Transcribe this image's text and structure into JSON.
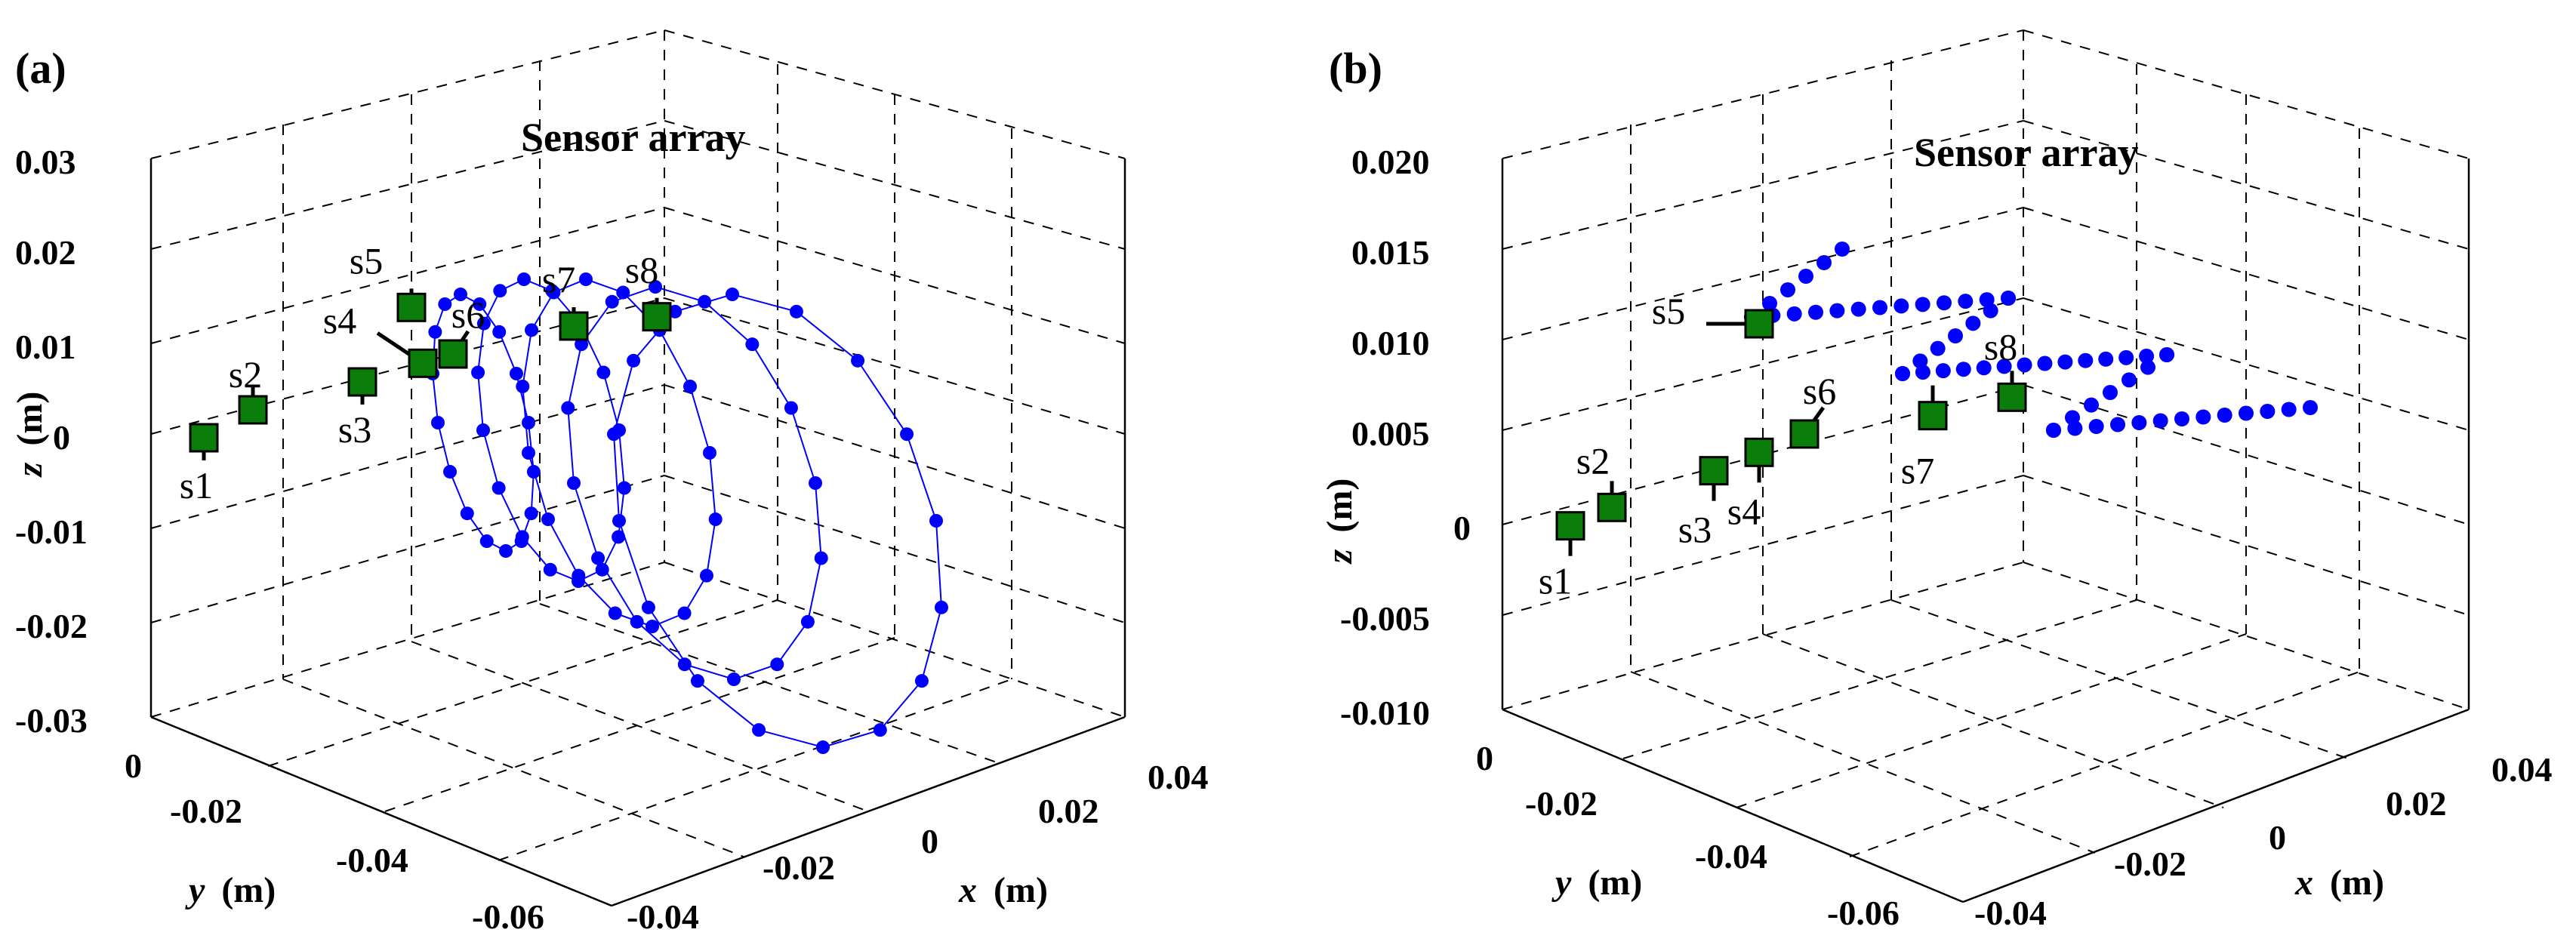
{
  "chart_data": [
    {
      "type": "scatter",
      "panel_label": "(a)",
      "title": "Sensor array",
      "xlabel": {
        "symbol": "x",
        "unit": "(m)"
      },
      "ylabel": {
        "symbol": "y",
        "unit": "(m)"
      },
      "zlabel": {
        "symbol": "z",
        "unit": "(m)"
      },
      "x_ticks": [
        "-0.04",
        "-0.02",
        "0",
        "0.02",
        "0.04"
      ],
      "y_ticks": [
        "0",
        "-0.02",
        "-0.04",
        "-0.06"
      ],
      "z_ticks": [
        "0.03",
        "0.02",
        "0.01",
        "0",
        "-0.01",
        "-0.02",
        "-0.03"
      ],
      "sensor_color": "#0a7d0a",
      "trajectory_color": "#0000ff",
      "trajectory_style": "lines+markers",
      "sensors": [
        {
          "label": "s1",
          "x": -0.04,
          "y": -0.005,
          "z": 0.0
        },
        {
          "label": "s2",
          "x": -0.035,
          "y": -0.005,
          "z": 0.003
        },
        {
          "label": "s3",
          "x": -0.025,
          "y": -0.005,
          "z": 0.006
        },
        {
          "label": "s4",
          "x": -0.02,
          "y": -0.005,
          "z": 0.008
        },
        {
          "label": "s5",
          "x": -0.02,
          "y": -0.005,
          "z": 0.014
        },
        {
          "label": "s6",
          "x": -0.015,
          "y": -0.005,
          "z": 0.009
        },
        {
          "label": "s7",
          "x": 0.0,
          "y": -0.005,
          "z": 0.012
        },
        {
          "label": "s8",
          "x": 0.01,
          "y": -0.005,
          "z": 0.013
        }
      ],
      "trajectory_description": "Multiple closed looping paths (sweeps) of the magnet in front of the sensor array"
    },
    {
      "type": "scatter",
      "panel_label": "(b)",
      "title": "Sensor array",
      "xlabel": {
        "symbol": "x",
        "unit": "(m)"
      },
      "ylabel": {
        "symbol": "y",
        "unit": "(m)"
      },
      "zlabel": {
        "symbol": "z",
        "unit": "(m)"
      },
      "x_ticks": [
        "-0.04",
        "-0.02",
        "0",
        "0.02",
        "0.04"
      ],
      "y_ticks": [
        "0",
        "-0.02",
        "-0.04",
        "-0.06"
      ],
      "z_ticks": [
        "0.020",
        "0.015",
        "0.010",
        "0.005",
        "0",
        "-0.005",
        "-0.010"
      ],
      "sensor_color": "#0a7d0a",
      "trajectory_color": "#0000ff",
      "trajectory_style": "markers",
      "sensors": [
        {
          "label": "s1",
          "x": -0.04,
          "y": -0.005,
          "z": 0.0
        },
        {
          "label": "s2",
          "x": -0.035,
          "y": -0.005,
          "z": 0.001
        },
        {
          "label": "s3",
          "x": -0.025,
          "y": -0.005,
          "z": 0.003
        },
        {
          "label": "s4",
          "x": -0.02,
          "y": -0.005,
          "z": 0.004
        },
        {
          "label": "s5",
          "x": -0.02,
          "y": -0.005,
          "z": 0.011
        },
        {
          "label": "s6",
          "x": -0.015,
          "y": -0.005,
          "z": 0.005
        },
        {
          "label": "s7",
          "x": 0.0,
          "y": -0.005,
          "z": 0.006
        },
        {
          "label": "s8",
          "x": 0.01,
          "y": -0.005,
          "z": 0.007
        }
      ],
      "trajectory_description": "Zig-zag dotted path of the magnet passing over the sensor array"
    }
  ]
}
